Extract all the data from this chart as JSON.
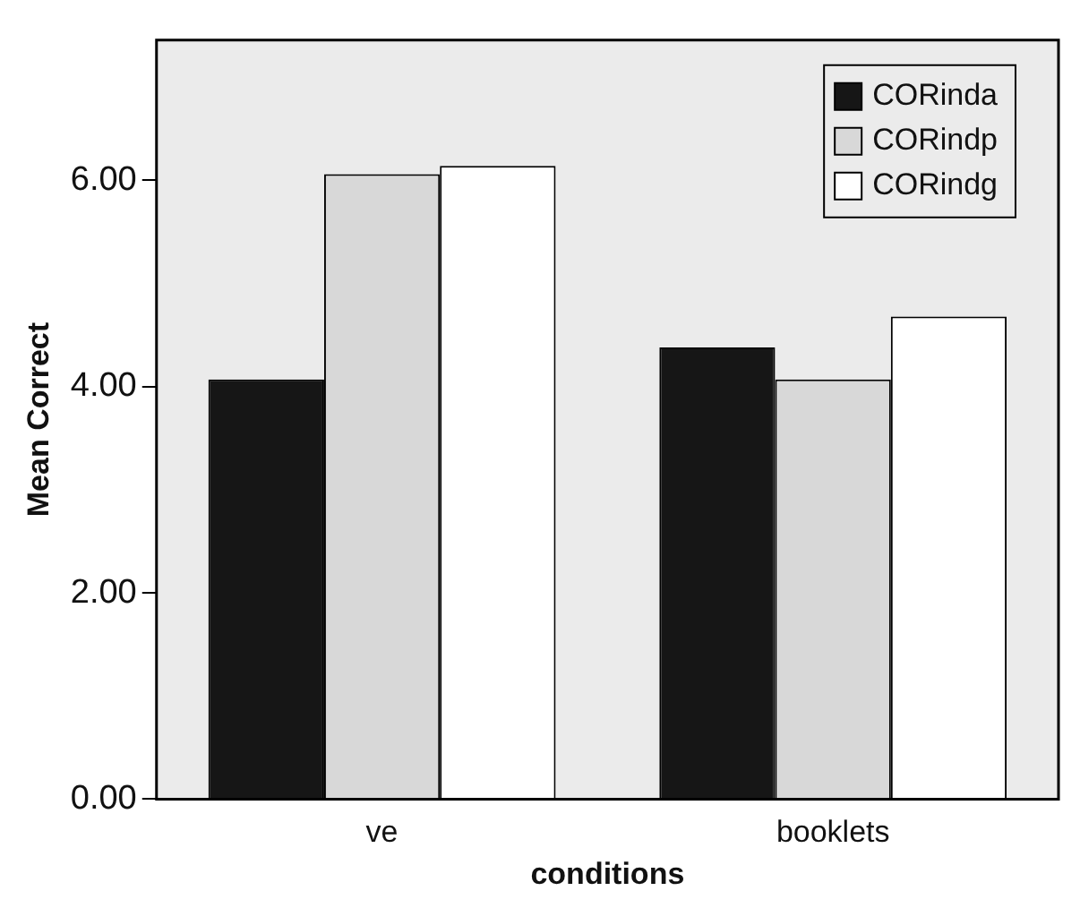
{
  "chart_data": {
    "type": "bar",
    "xlabel": "conditions",
    "ylabel": "Mean Correct",
    "categories": [
      "ve",
      "booklets"
    ],
    "series": [
      {
        "name": "CORinda",
        "color": "#161616",
        "values": [
          4.07,
          4.38
        ]
      },
      {
        "name": "CORindp",
        "color": "#d8d8d8",
        "values": [
          6.06,
          4.07
        ]
      },
      {
        "name": "CORindg",
        "color": "#ffffff",
        "values": [
          6.14,
          4.68
        ]
      }
    ],
    "ylim": [
      0,
      7.36
    ],
    "yticks": [
      {
        "value": 0,
        "label": "0.00"
      },
      {
        "value": 2,
        "label": "2.00"
      },
      {
        "value": 4,
        "label": "4.00"
      },
      {
        "value": 6,
        "label": "6.00"
      }
    ],
    "grid": false,
    "legend": "top right"
  }
}
